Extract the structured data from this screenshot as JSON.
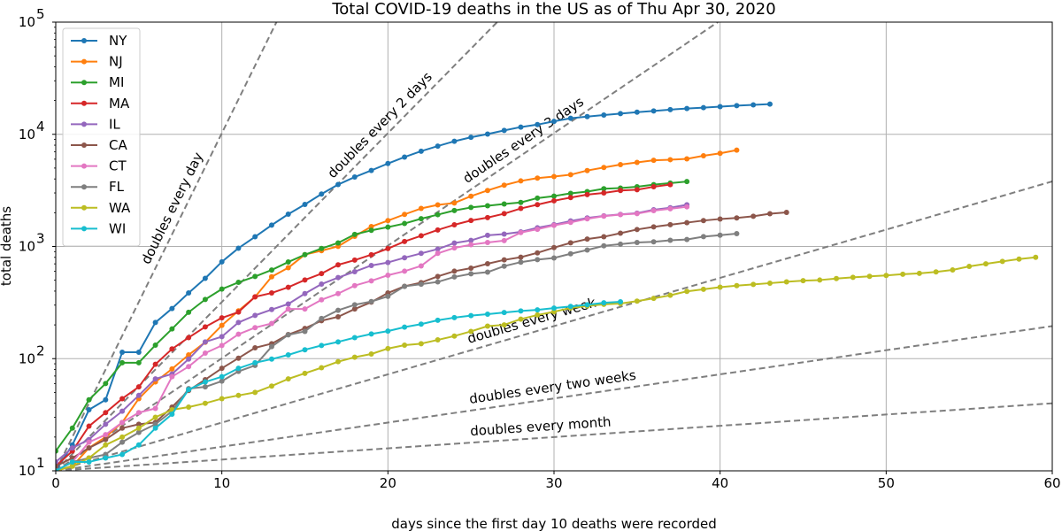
{
  "chart_data": {
    "type": "line",
    "title": "Total COVID-19 deaths in the US as of Thu Apr 30, 2020",
    "xlabel": "days since the first day 10 deaths were recorded",
    "ylabel": "total deaths",
    "xlim": [
      0,
      60
    ],
    "ylim": [
      10,
      100000
    ],
    "yscale": "log",
    "grid": true,
    "legend_position": "top-left",
    "x_ticks": [
      "0",
      "10",
      "20",
      "30",
      "40",
      "50",
      "60"
    ],
    "y_ticks": [
      {
        "base": "10",
        "exp": "1"
      },
      {
        "base": "10",
        "exp": "2"
      },
      {
        "base": "10",
        "exp": "3"
      },
      {
        "base": "10",
        "exp": "4"
      },
      {
        "base": "10",
        "exp": "5"
      }
    ],
    "reference_lines": [
      {
        "label": "doubles every day",
        "doubling_days": 1,
        "color": "#7f7f7f"
      },
      {
        "label": "doubles every 2 days",
        "doubling_days": 2,
        "color": "#7f7f7f"
      },
      {
        "label": "doubles every 3 days",
        "doubling_days": 3,
        "color": "#7f7f7f"
      },
      {
        "label": "doubles every week",
        "doubling_days": 7,
        "color": "#7f7f7f"
      },
      {
        "label": "doubles every two weeks",
        "doubling_days": 14,
        "color": "#7f7f7f"
      },
      {
        "label": "doubles every month",
        "doubling_days": 30,
        "color": "#7f7f7f"
      }
    ],
    "series": [
      {
        "name": "NY",
        "color": "#1f77b4",
        "values": [
          10,
          17,
          35,
          43,
          114,
          114,
          210,
          280,
          385,
          520,
          730,
          965,
          1220,
          1550,
          1940,
          2370,
          2935,
          3565,
          4160,
          4760,
          5490,
          6270,
          7070,
          7850,
          8670,
          9400,
          10050,
          10830,
          11600,
          12200,
          13050,
          13900,
          14390,
          14850,
          15300,
          15750,
          16160,
          16600,
          16990,
          17300,
          17640,
          18000,
          18300,
          18600
        ]
      },
      {
        "name": "NJ",
        "color": "#ff7f0e",
        "values": [
          10,
          11,
          16,
          20,
          27,
          44,
          62,
          81,
          108,
          140,
          198,
          267,
          355,
          537,
          646,
          846,
          917,
          1003,
          1232,
          1504,
          1700,
          1932,
          2183,
          2350,
          2443,
          2805,
          3156,
          3518,
          3840,
          4070,
          4202,
          4362,
          4753,
          5063,
          5368,
          5617,
          5863,
          5938,
          6044,
          6442,
          6770,
          7228
        ]
      },
      {
        "name": "MI",
        "color": "#2ca02c",
        "values": [
          15,
          24,
          43,
          60,
          92,
          92,
          132,
          184,
          259,
          337,
          417,
          479,
          540,
          617,
          727,
          845,
          959,
          1076,
          1281,
          1392,
          1487,
          1602,
          1768,
          1921,
          2093,
          2227,
          2308,
          2391,
          2468,
          2700,
          2813,
          2977,
          3085,
          3274,
          3315,
          3407,
          3556,
          3670,
          3789
        ]
      },
      {
        "name": "MA",
        "color": "#d62728",
        "values": [
          11,
          15,
          25,
          33,
          44,
          56,
          89,
          122,
          154,
          192,
          231,
          260,
          356,
          385,
          433,
          503,
          573,
          686,
          756,
          844,
          957,
          1108,
          1245,
          1404,
          1560,
          1706,
          1809,
          1961,
          2182,
          2360,
          2556,
          2730,
          2899,
          3003,
          3153,
          3205,
          3405,
          3562
        ]
      },
      {
        "name": "IL",
        "color": "#9467bd",
        "values": [
          12,
          16,
          19,
          26,
          34,
          47,
          66,
          73,
          99,
          141,
          157,
          210,
          243,
          274,
          307,
          380,
          462,
          528,
          596,
          677,
          720,
          794,
          868,
          948,
          1072,
          1132,
          1259,
          1290,
          1349,
          1468,
          1565,
          1688,
          1795,
          1874,
          1933,
          1983,
          2125,
          2215,
          2355
        ]
      },
      {
        "name": "CA",
        "color": "#8c564b",
        "values": [
          11,
          13,
          16,
          19,
          24,
          26,
          27,
          37,
          52,
          65,
          82,
          101,
          125,
          136,
          164,
          186,
          218,
          236,
          277,
          319,
          385,
          442,
          476,
          541,
          602,
          641,
          702,
          759,
          802,
          877,
          977,
          1077,
          1165,
          1220,
          1314,
          1417,
          1496,
          1563,
          1631,
          1703,
          1758,
          1796,
          1858,
          1958,
          2011
        ]
      },
      {
        "name": "CT",
        "color": "#e377c2",
        "values": [
          10,
          12,
          18,
          21,
          27,
          33,
          36,
          69,
          85,
          112,
          131,
          165,
          189,
          206,
          277,
          277,
          335,
          380,
          448,
          494,
          554,
          602,
          671,
          868,
          971,
          1036,
          1086,
          1127,
          1331,
          1423,
          1544,
          1639,
          1764,
          1862,
          1924,
          1961,
          2089,
          2168,
          2257
        ]
      },
      {
        "name": "FL",
        "color": "#7f7f7f",
        "values": [
          10,
          12,
          13,
          14,
          18,
          22,
          26,
          34,
          54,
          56,
          63,
          77,
          87,
          128,
          163,
          175,
          228,
          270,
          302,
          323,
          359,
          441,
          461,
          483,
          535,
          571,
          590,
          668,
          725,
          763,
          790,
          861,
          930,
          1014,
          1049,
          1085,
          1101,
          1136,
          1154,
          1224,
          1261,
          1301
        ]
      },
      {
        "name": "WA",
        "color": "#bcbd22",
        "values": [
          10,
          11,
          13,
          17,
          20,
          24,
          30,
          35,
          37,
          40,
          44,
          47,
          50,
          57,
          66,
          74,
          83,
          94,
          103,
          110,
          123,
          132,
          136,
          147,
          159,
          175,
          195,
          200,
          225,
          245,
          262,
          283,
          295,
          305,
          310,
          326,
          345,
          367,
          398,
          415,
          434,
          448,
          459,
          471,
          484,
          496,
          502,
          518,
          531,
          542,
          552,
          566,
          576,
          593,
          618,
          665,
          700,
          736,
          772,
          801
        ]
      },
      {
        "name": "WI",
        "color": "#17becf",
        "values": [
          10,
          12,
          12,
          13,
          14,
          17,
          24,
          32,
          53,
          62,
          69,
          82,
          92,
          99,
          108,
          120,
          131,
          141,
          154,
          166,
          176,
          191,
          203,
          220,
          232,
          242,
          249,
          258,
          266,
          272,
          282,
          292,
          302,
          315,
          321
        ]
      }
    ]
  }
}
